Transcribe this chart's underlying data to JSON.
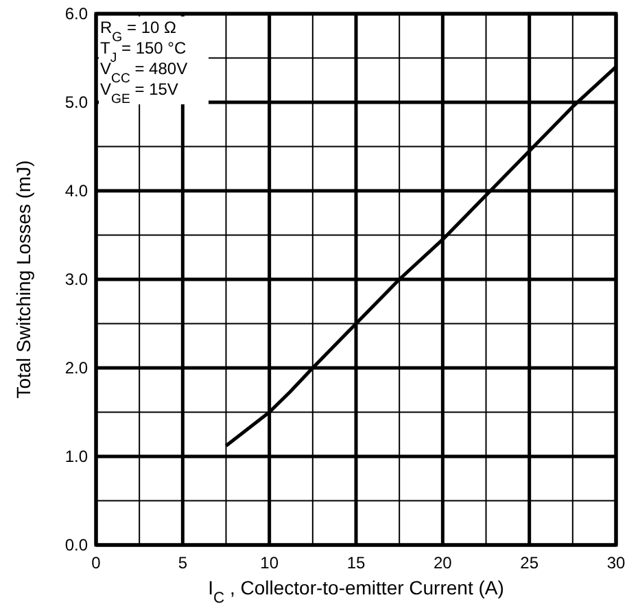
{
  "chart_data": {
    "type": "line",
    "xlabel": "I$_{C}$ , Collector-to-emitter Current (A)",
    "ylabel": "Total Switching Losses (mJ)",
    "series": [
      {
        "color": "#000000",
        "x": [
          7.5,
          10,
          11.2,
          12.5,
          15,
          17.5,
          20,
          22.5,
          25,
          27.5,
          30
        ],
        "values": [
          1.12,
          1.5,
          1.73,
          2.0,
          2.5,
          3.0,
          3.45,
          3.95,
          4.45,
          4.95,
          5.4
        ]
      }
    ],
    "xlim": [
      0,
      30
    ],
    "ylim": [
      0,
      6
    ],
    "xticks": [
      0,
      {
        "value": 2.5,
        "label": null
      },
      5,
      {
        "value": 7.5,
        "label": null
      },
      10,
      {
        "value": 12.5,
        "label": null
      },
      15,
      {
        "value": 17.5,
        "label": null
      },
      20,
      {
        "value": 22.5,
        "label": null
      },
      25,
      {
        "value": 27.5,
        "label": null
      },
      30
    ],
    "yticks": [
      {
        "value": 0,
        "label": "0.0"
      },
      {
        "value": 0.5,
        "label": null
      },
      {
        "value": 1,
        "label": "1.0"
      },
      {
        "value": 1.5,
        "label": null
      },
      {
        "value": 2,
        "label": "2.0"
      },
      {
        "value": 2.5,
        "label": null
      },
      {
        "value": 3,
        "label": "3.0"
      },
      {
        "value": 3.5,
        "label": null
      },
      {
        "value": 4,
        "label": "4.0"
      },
      {
        "value": 4.5,
        "label": null
      },
      {
        "value": 5,
        "label": "5.0"
      },
      {
        "value": 5.5,
        "label": null
      },
      {
        "value": 6,
        "label": "6.0"
      }
    ],
    "grid": true,
    "marker": "none",
    "line_style": "solid",
    "annotations": [
      "R$_{G}$   = 10 Ω",
      "T$_{J}$    = 150 °C",
      "V$_{CC}$ = 480V",
      "V$_{GE}$ = 15V"
    ]
  }
}
